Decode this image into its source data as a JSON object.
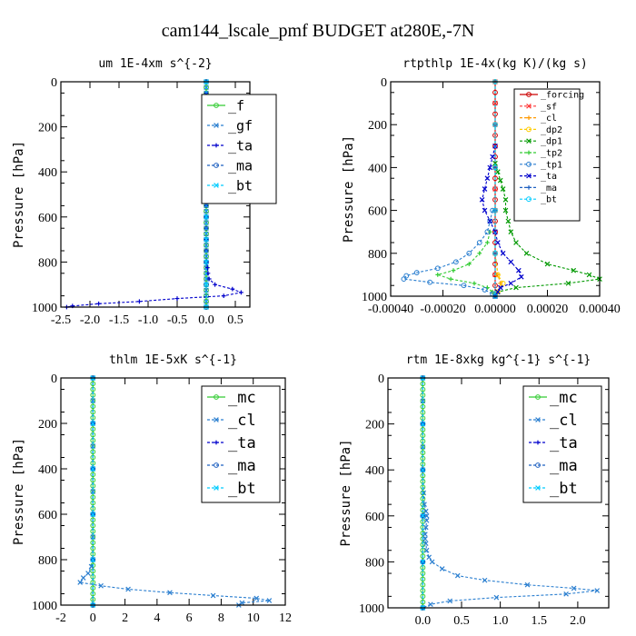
{
  "title": "cam144_lscale_pmf  BUDGET at280E,-7N",
  "chart_data": [
    {
      "type": "line",
      "title": "um  1E-4xm s^{-2}",
      "xlabel": "",
      "ylabel": "Pressure [hPa]",
      "xlim": [
        -2.5,
        0.75
      ],
      "ylim": [
        1000,
        0
      ],
      "xticks": [
        -2.5,
        -2.0,
        -1.5,
        -1.0,
        -0.5,
        0.0,
        0.5
      ],
      "xticklabels": [
        "-2.5",
        "-2.0",
        "-1.5",
        "-1.0",
        "-0.5",
        "0.0",
        "0.5"
      ],
      "yticks": [
        0,
        200,
        400,
        600,
        800,
        1000
      ],
      "legend_placement": "top-right",
      "series": [
        {
          "name": "_f",
          "color": "#33cc33",
          "y": [
            0,
            25,
            50,
            75,
            100,
            125,
            150,
            175,
            200,
            225,
            250,
            275,
            300,
            325,
            350,
            375,
            400,
            425,
            450,
            475,
            500,
            525,
            550,
            575,
            600,
            625,
            650,
            675,
            700,
            725,
            750,
            775,
            800,
            825,
            850,
            875,
            900,
            925,
            950,
            975,
            1000
          ],
          "x": [
            0,
            0,
            0,
            0,
            0,
            0,
            0,
            0,
            0,
            0,
            0,
            0,
            0,
            0,
            0,
            0,
            0,
            0,
            0,
            0,
            0,
            0,
            0,
            0,
            0,
            0,
            0,
            0,
            0,
            0,
            0,
            0,
            0,
            0,
            0,
            0,
            0,
            0,
            0,
            0,
            0
          ]
        },
        {
          "name": "_gf",
          "color": "#2b7fd0",
          "y": [
            0,
            25,
            50,
            75,
            100,
            125,
            150,
            175,
            200,
            225,
            250,
            275,
            300,
            325,
            350,
            375,
            400,
            425,
            450,
            475,
            500,
            525,
            550,
            575,
            600,
            625,
            650,
            675,
            700,
            725,
            750,
            775,
            800,
            825,
            850,
            875,
            900,
            925,
            950,
            975,
            1000
          ],
          "x": [
            0,
            0,
            0,
            0,
            0,
            0,
            0,
            0,
            0,
            0,
            0,
            0,
            0,
            0,
            0,
            0,
            0,
            0,
            0,
            0,
            0,
            0,
            0,
            0,
            0,
            0,
            0,
            0,
            0,
            0,
            0,
            0,
            0,
            0,
            0,
            0,
            0,
            0,
            0,
            0,
            0
          ]
        },
        {
          "name": "_ta",
          "color": "#0000cc",
          "y": [
            0,
            50,
            100,
            150,
            200,
            250,
            300,
            350,
            400,
            450,
            500,
            550,
            600,
            650,
            700,
            750,
            800,
            825,
            850,
            875,
            900,
            920,
            935,
            950,
            962,
            975,
            985,
            995,
            1000
          ],
          "x": [
            0,
            0,
            0,
            0,
            0,
            0,
            0,
            0,
            0,
            0,
            0,
            0,
            0,
            0,
            0,
            0,
            0.01,
            0.02,
            0.03,
            0.05,
            0.15,
            0.45,
            0.6,
            0.3,
            -0.5,
            -1.15,
            -1.85,
            -2.3,
            -2.4
          ]
        },
        {
          "name": "_ma",
          "color": "#1f60c0",
          "y": [
            0,
            100,
            200,
            300,
            400,
            500,
            600,
            700,
            800,
            900,
            1000
          ],
          "x": [
            0,
            0,
            0,
            0,
            0,
            0,
            0,
            0,
            0,
            0,
            0
          ]
        },
        {
          "name": "_bt",
          "color": "#00ccff",
          "y": [
            0,
            100,
            200,
            300,
            400,
            500,
            600,
            700,
            800,
            900,
            1000
          ],
          "x": [
            0,
            0,
            0,
            0,
            0,
            0,
            0,
            0,
            0,
            0,
            0
          ]
        }
      ]
    },
    {
      "type": "line",
      "title": "rtpthlp  1E-4x(kg K)/(kg s)",
      "xlabel": "",
      "ylabel": "Pressure [hPa]",
      "xlim": [
        -0.0004,
        0.0004
      ],
      "ylim": [
        1000,
        0
      ],
      "xticks": [
        -0.0004,
        -0.0002,
        0,
        0.0002,
        0.0004
      ],
      "xticklabels": [
        "-0.00040",
        "-0.00020",
        "0.00000",
        "0.00020",
        "0.00040"
      ],
      "yticks": [
        0,
        200,
        400,
        600,
        800,
        1000
      ],
      "legend_placement": "top-right",
      "series": [
        {
          "name": "_forcing",
          "color": "#cc0000",
          "y": [
            0,
            50,
            100,
            150,
            200,
            250,
            300,
            350,
            400,
            450,
            500,
            550,
            600,
            650,
            700,
            750,
            800,
            850,
            900,
            950,
            1000
          ],
          "x": [
            0,
            0,
            0,
            0,
            0,
            0,
            0,
            0,
            0,
            0,
            0,
            0,
            0,
            0,
            0,
            0,
            0,
            0,
            0,
            0,
            0
          ]
        },
        {
          "name": "_sf",
          "color": "#ff3333",
          "y": [
            0,
            100,
            200,
            300,
            400,
            500,
            600,
            700,
            800,
            900,
            1000
          ],
          "x": [
            0,
            0,
            0,
            0,
            0,
            0,
            0,
            0,
            0,
            0,
            0
          ]
        },
        {
          "name": "_cl",
          "color": "#ff9900",
          "y": [
            0,
            200,
            400,
            600,
            800,
            900,
            940,
            980,
            1000
          ],
          "x": [
            0,
            0,
            0,
            0,
            0,
            1e-05,
            2e-05,
            1e-05,
            0
          ]
        },
        {
          "name": "_dp2",
          "color": "#ffcc00",
          "y": [
            0,
            200,
            400,
            600,
            800,
            900,
            940,
            980,
            1000
          ],
          "x": [
            0,
            0,
            0,
            0,
            0,
            1e-05,
            3e-05,
            1e-05,
            0
          ]
        },
        {
          "name": "_dp1",
          "color": "#009900",
          "y": [
            380,
            420,
            460,
            500,
            550,
            600,
            650,
            700,
            750,
            800,
            850,
            880,
            900,
            920,
            940,
            960,
            980,
            1000
          ],
          "x": [
            0,
            1e-05,
            2e-05,
            3e-05,
            4e-05,
            4e-05,
            5e-05,
            6e-05,
            8e-05,
            0.00012,
            0.0002,
            0.0003,
            0.00036,
            0.0004,
            0.00028,
            8e-05,
            1e-05,
            0
          ]
        },
        {
          "name": "_tp2",
          "color": "#33cc33",
          "y": [
            700,
            750,
            800,
            850,
            880,
            900,
            920,
            940,
            960,
            980,
            1000
          ],
          "x": [
            -2e-05,
            -3e-05,
            -6e-05,
            -0.0001,
            -0.00016,
            -0.00022,
            -0.00017,
            -8e-05,
            -3e-05,
            -1e-05,
            0
          ]
        },
        {
          "name": "_tp1",
          "color": "#2b7fd0",
          "y": [
            600,
            650,
            700,
            750,
            800,
            840,
            870,
            890,
            905,
            920,
            935,
            950,
            970,
            990,
            1000
          ],
          "x": [
            -1e-05,
            -2e-05,
            -3e-05,
            -6e-05,
            -0.0001,
            -0.00015,
            -0.00022,
            -0.0003,
            -0.00034,
            -0.00035,
            -0.00025,
            -0.00012,
            -4e-05,
            -1e-05,
            0
          ]
        },
        {
          "name": "_ta",
          "color": "#0000cc",
          "y": [
            300,
            350,
            400,
            450,
            500,
            550,
            600,
            650,
            700,
            750,
            800,
            840,
            880,
            910,
            940,
            960,
            980,
            1000
          ],
          "x": [
            0,
            -1e-05,
            -2e-05,
            -3e-05,
            -4e-05,
            -5e-05,
            -4e-05,
            -2e-05,
            0,
            1e-05,
            3e-05,
            6e-05,
            9e-05,
            0.0001,
            6e-05,
            2e-05,
            1e-05,
            0
          ]
        },
        {
          "name": "_ma",
          "color": "#1f60c0",
          "y": [
            0,
            200,
            400,
            600,
            800,
            1000
          ],
          "x": [
            0,
            0,
            0,
            0,
            0,
            0
          ]
        },
        {
          "name": "_bt",
          "color": "#00ccff",
          "y": [
            0,
            200,
            400,
            600,
            800,
            1000
          ],
          "x": [
            0,
            0,
            0,
            0,
            0,
            0
          ]
        }
      ]
    },
    {
      "type": "line",
      "title": "thlm  1E-5xK s^{-1}",
      "xlabel": "",
      "ylabel": "Pressure [hPa]",
      "xlim": [
        -2,
        12
      ],
      "ylim": [
        1000,
        0
      ],
      "xticks": [
        -2,
        0,
        2,
        4,
        6,
        8,
        10,
        12
      ],
      "xticklabels": [
        "-2",
        "0",
        "2",
        "4",
        "6",
        "8",
        "10",
        "12"
      ],
      "yticks": [
        0,
        200,
        400,
        600,
        800,
        1000
      ],
      "legend_placement": "top-right",
      "series": [
        {
          "name": "_mc",
          "color": "#33cc33",
          "y": [
            0,
            25,
            50,
            75,
            100,
            125,
            150,
            175,
            200,
            225,
            250,
            275,
            300,
            325,
            350,
            375,
            400,
            425,
            450,
            475,
            500,
            525,
            550,
            575,
            600,
            625,
            650,
            675,
            700,
            725,
            750,
            775,
            800,
            825,
            850,
            875,
            900,
            925,
            950,
            975,
            1000
          ],
          "x": [
            0,
            0,
            0,
            0,
            0,
            0,
            0,
            0,
            0,
            0,
            0,
            0,
            0,
            0,
            0,
            0,
            0,
            0,
            0,
            0,
            0,
            0,
            0,
            0,
            0,
            0,
            0,
            0,
            0,
            0,
            0,
            0,
            0,
            0,
            0,
            0,
            0,
            0,
            0,
            0,
            0
          ]
        },
        {
          "name": "_cl",
          "color": "#2b7fd0",
          "y": [
            0,
            100,
            200,
            300,
            400,
            500,
            600,
            700,
            800,
            830,
            860,
            880,
            900,
            915,
            930,
            945,
            958,
            970,
            980,
            990,
            1000
          ],
          "x": [
            0,
            0,
            0,
            0,
            0,
            0,
            0,
            0,
            0,
            -0.1,
            -0.3,
            -0.6,
            -0.8,
            0.5,
            2.2,
            4.8,
            7.5,
            10.2,
            11,
            9.3,
            9.1
          ]
        },
        {
          "name": "_ta",
          "color": "#0000cc",
          "y": [
            0,
            200,
            400,
            600,
            800,
            1000
          ],
          "x": [
            0,
            0,
            0,
            0,
            0,
            0
          ]
        },
        {
          "name": "_ma",
          "color": "#1f60c0",
          "y": [
            0,
            200,
            400,
            600,
            800,
            1000
          ],
          "x": [
            0,
            0,
            0,
            0,
            0,
            0
          ]
        },
        {
          "name": "_bt",
          "color": "#00ccff",
          "y": [
            0,
            200,
            400,
            600,
            800,
            1000
          ],
          "x": [
            0,
            0,
            0,
            0,
            0,
            0
          ]
        }
      ]
    },
    {
      "type": "line",
      "title": "rtm  1E-8xkg kg^{-1} s^{-1}",
      "xlabel": "",
      "ylabel": "Pressure [hPa]",
      "xlim": [
        -0.45,
        2.4
      ],
      "ylim": [
        1000,
        0
      ],
      "xticks": [
        0,
        0.5,
        1.0,
        1.5,
        2.0
      ],
      "xticklabels": [
        "0.0",
        "0.5",
        "1.0",
        "1.5",
        "2.0"
      ],
      "yticks": [
        0,
        200,
        400,
        600,
        800,
        1000
      ],
      "legend_placement": "top-right",
      "series": [
        {
          "name": "_mc",
          "color": "#33cc33",
          "y": [
            0,
            25,
            50,
            75,
            100,
            125,
            150,
            175,
            200,
            225,
            250,
            275,
            300,
            325,
            350,
            375,
            400,
            425,
            450,
            475,
            500,
            525,
            550,
            575,
            600,
            625,
            650,
            675,
            700,
            725,
            750,
            775,
            800,
            825,
            850,
            875,
            900,
            925,
            950,
            975,
            1000
          ],
          "x": [
            0,
            0,
            0,
            0,
            0,
            0,
            0,
            0,
            0,
            0,
            0,
            0,
            0,
            0,
            0,
            0,
            0,
            0,
            0,
            0,
            0,
            0,
            0,
            0,
            0,
            0,
            0,
            0,
            0,
            0,
            0,
            0,
            0,
            0,
            0,
            0,
            0,
            0,
            0,
            0,
            0
          ]
        },
        {
          "name": "_cl",
          "color": "#2b7fd0",
          "y": [
            0,
            100,
            200,
            300,
            400,
            500,
            550,
            580,
            600,
            620,
            650,
            680,
            700,
            720,
            750,
            780,
            800,
            830,
            860,
            880,
            900,
            915,
            925,
            940,
            955,
            970,
            985,
            1000
          ],
          "x": [
            0,
            0,
            0,
            0,
            0,
            0.01,
            0.02,
            0.04,
            0.05,
            0.05,
            0.04,
            0.03,
            0.03,
            0.04,
            0.05,
            0.08,
            0.12,
            0.25,
            0.45,
            0.8,
            1.35,
            1.95,
            2.25,
            1.85,
            0.95,
            0.35,
            0.1,
            0
          ]
        },
        {
          "name": "_ta",
          "color": "#0000cc",
          "y": [
            0,
            200,
            400,
            600,
            800,
            1000
          ],
          "x": [
            0,
            0,
            0,
            0,
            0,
            0
          ]
        },
        {
          "name": "_ma",
          "color": "#1f60c0",
          "y": [
            0,
            200,
            400,
            600,
            800,
            1000
          ],
          "x": [
            0,
            0,
            0,
            0,
            0,
            0
          ]
        },
        {
          "name": "_bt",
          "color": "#00ccff",
          "y": [
            0,
            200,
            400,
            600,
            800,
            1000
          ],
          "x": [
            0,
            0,
            0,
            0,
            0,
            0
          ]
        }
      ]
    }
  ]
}
